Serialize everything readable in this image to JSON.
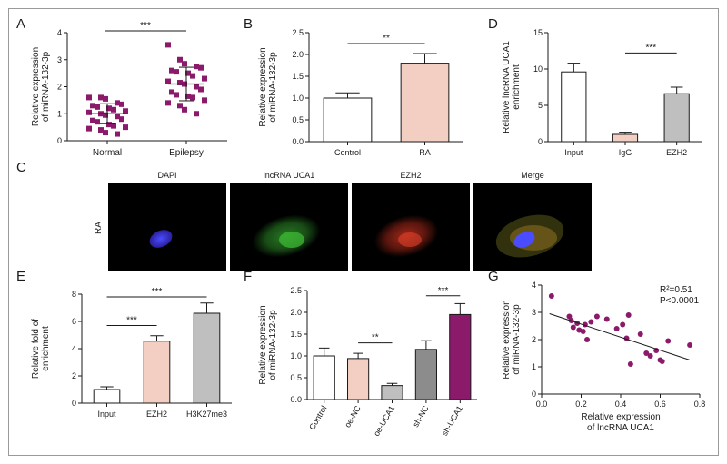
{
  "panels": {
    "A": {
      "letter": "A"
    },
    "B": {
      "letter": "B"
    },
    "C": {
      "letter": "C"
    },
    "D": {
      "letter": "D"
    },
    "E": {
      "letter": "E"
    },
    "F": {
      "letter": "F"
    },
    "G": {
      "letter": "G"
    }
  },
  "microscopy": {
    "side_label": "RA",
    "titles": [
      "DAPI",
      "lncRNA UCA1",
      "EZH2",
      "Merge"
    ]
  },
  "chart_data": [
    {
      "id": "A",
      "type": "scatter",
      "categories": [
        "Normal",
        "Epilepsy"
      ],
      "ylabel": "Relative expression of miRNA-132-3p",
      "ylim": [
        0,
        4
      ],
      "yticks": [
        0,
        1,
        2,
        3,
        4
      ],
      "marker_color": "#8b1a6b",
      "significance": "***",
      "groups": [
        {
          "name": "Normal",
          "mean": 1.0,
          "sd": 0.37,
          "values": [
            1.6,
            1.6,
            1.55,
            1.4,
            1.35,
            1.3,
            1.25,
            1.2,
            1.15,
            1.1,
            1.05,
            1.0,
            0.95,
            0.9,
            0.8,
            0.75,
            0.7,
            0.6,
            0.55,
            0.5,
            0.45,
            0.4,
            0.3,
            0.25
          ]
        },
        {
          "name": "Epilepsy",
          "mean": 2.1,
          "sd": 0.62,
          "values": [
            3.55,
            3.0,
            2.85,
            2.75,
            2.7,
            2.6,
            2.55,
            2.5,
            2.4,
            2.3,
            2.2,
            2.15,
            2.1,
            2.0,
            1.9,
            1.8,
            1.7,
            1.65,
            1.6,
            1.5,
            1.4,
            1.3,
            1.15,
            1.0
          ]
        }
      ]
    },
    {
      "id": "B",
      "type": "bar",
      "categories": [
        "Control",
        "RA"
      ],
      "values": [
        1.0,
        1.8
      ],
      "errors": [
        0.12,
        0.22
      ],
      "colors": [
        "#ffffff",
        "#f2cfc2"
      ],
      "ylabel": "Relative expression of miRNA-132-3p",
      "ylim": [
        0,
        2.5
      ],
      "yticks": [
        "0.0",
        "0.5",
        "1.0",
        "1.5",
        "2.0",
        "2.5"
      ],
      "significance": "**"
    },
    {
      "id": "D",
      "type": "bar",
      "categories": [
        "Input",
        "IgG",
        "EZH2"
      ],
      "values": [
        9.6,
        1.0,
        6.6
      ],
      "errors": [
        1.2,
        0.3,
        0.9
      ],
      "colors": [
        "#ffffff",
        "#f2cfc2",
        "#bfbfbf"
      ],
      "ylabel": "Relative lncRNA UCA1 enrichment",
      "ylim": [
        0,
        15
      ],
      "yticks": [
        0,
        5,
        10,
        15
      ],
      "significance": "***"
    },
    {
      "id": "E",
      "type": "bar",
      "categories": [
        "Input",
        "EZH2",
        "H3K27me3"
      ],
      "values": [
        1.0,
        4.55,
        6.6
      ],
      "errors": [
        0.2,
        0.4,
        0.75
      ],
      "colors": [
        "#ffffff",
        "#f2cfc2",
        "#bfbfbf"
      ],
      "ylabel": "Relative fold of enrichment",
      "ylim": [
        0,
        8
      ],
      "yticks": [
        0,
        2,
        4,
        6,
        8
      ],
      "significance": [
        "***",
        "***"
      ]
    },
    {
      "id": "F",
      "type": "bar",
      "categories": [
        "Control",
        "oe-NC",
        "oe-UCA1",
        "sh-NC",
        "sh-UCA1"
      ],
      "values": [
        1.0,
        0.94,
        0.32,
        1.15,
        1.95
      ],
      "errors": [
        0.18,
        0.12,
        0.05,
        0.2,
        0.25
      ],
      "colors": [
        "#ffffff",
        "#f2cfc2",
        "#bfbfbf",
        "#8c8c8c",
        "#8b1a6b"
      ],
      "ylabel": "Relative expression of miRNA-132-3p",
      "ylim": [
        0,
        2.5
      ],
      "yticks": [
        "0.0",
        "0.5",
        "1.0",
        "1.5",
        "2.0",
        "2.5"
      ],
      "significance": [
        "**",
        "***"
      ]
    },
    {
      "id": "G",
      "type": "scatter",
      "xlabel": "Relative expression of lncRNA UCA1",
      "ylabel": "Relative expression of miRNA-132-3p",
      "xlim": [
        0,
        0.8
      ],
      "ylim": [
        0,
        4
      ],
      "xticks": [
        "0.0",
        "0.2",
        "0.4",
        "0.6",
        "0.8"
      ],
      "yticks": [
        0,
        1,
        2,
        3,
        4
      ],
      "marker_color": "#8b1a6b",
      "annotation": [
        "R²=0.51",
        "P<0.0001"
      ],
      "fit": {
        "x": [
          0.04,
          0.75
        ],
        "y": [
          2.95,
          1.25
        ]
      },
      "points": [
        {
          "x": 0.05,
          "y": 3.6
        },
        {
          "x": 0.14,
          "y": 2.85
        },
        {
          "x": 0.15,
          "y": 2.7
        },
        {
          "x": 0.16,
          "y": 2.45
        },
        {
          "x": 0.18,
          "y": 2.6
        },
        {
          "x": 0.19,
          "y": 2.35
        },
        {
          "x": 0.21,
          "y": 2.3
        },
        {
          "x": 0.22,
          "y": 2.55
        },
        {
          "x": 0.23,
          "y": 2.0
        },
        {
          "x": 0.25,
          "y": 2.65
        },
        {
          "x": 0.28,
          "y": 2.85
        },
        {
          "x": 0.33,
          "y": 2.75
        },
        {
          "x": 0.38,
          "y": 2.4
        },
        {
          "x": 0.41,
          "y": 2.55
        },
        {
          "x": 0.43,
          "y": 2.05
        },
        {
          "x": 0.44,
          "y": 2.9
        },
        {
          "x": 0.45,
          "y": 1.1
        },
        {
          "x": 0.5,
          "y": 2.2
        },
        {
          "x": 0.53,
          "y": 1.5
        },
        {
          "x": 0.55,
          "y": 1.4
        },
        {
          "x": 0.58,
          "y": 1.6
        },
        {
          "x": 0.6,
          "y": 1.25
        },
        {
          "x": 0.61,
          "y": 1.2
        },
        {
          "x": 0.64,
          "y": 1.95
        },
        {
          "x": 0.75,
          "y": 1.8
        }
      ]
    }
  ]
}
